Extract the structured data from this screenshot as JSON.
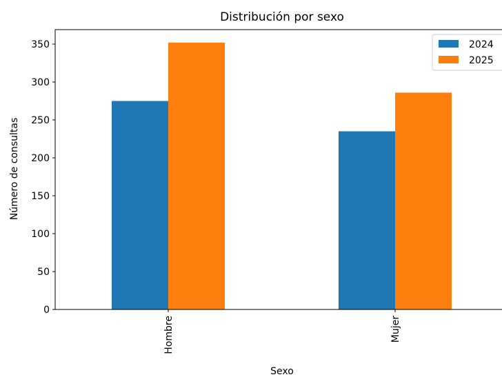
{
  "chart_data": {
    "type": "bar",
    "title": "Distribución por sexo",
    "xlabel": "Sexo",
    "ylabel": "Número de consultas",
    "categories": [
      "Hombre",
      "Mujer"
    ],
    "series": [
      {
        "name": "2024",
        "color": "#1f77b4",
        "values": [
          275,
          235
        ]
      },
      {
        "name": "2025",
        "color": "#ff7f0e",
        "values": [
          352,
          286
        ]
      }
    ],
    "ylim": [
      0,
      370
    ],
    "yticks": [
      0,
      50,
      100,
      150,
      200,
      250,
      300,
      350
    ],
    "grid": false,
    "legend_position": "top-right"
  }
}
